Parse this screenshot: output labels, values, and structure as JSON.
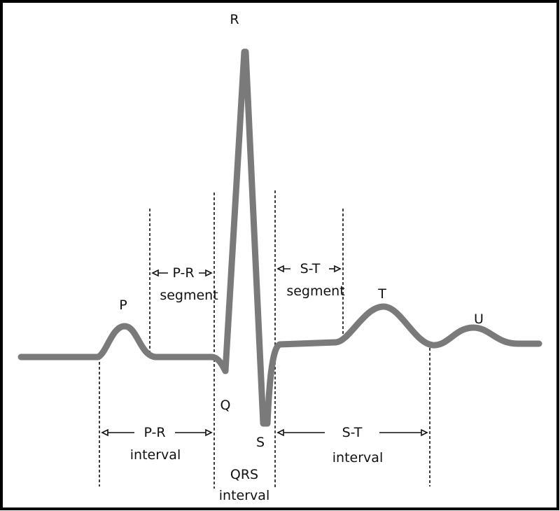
{
  "colors": {
    "trace": "#7a7a7a",
    "border": "#000000",
    "ink": "#111111"
  },
  "waves": {
    "p": "P",
    "q": "Q",
    "r": "R",
    "s": "S",
    "t": "T",
    "u": "U"
  },
  "spans": {
    "pr_segment": {
      "line1": "P-R",
      "line2": "segment"
    },
    "st_segment": {
      "line1": "S-T",
      "line2": "segment"
    },
    "pr_interval": {
      "line1": "P-R",
      "line2": "interval"
    },
    "st_interval": {
      "line1": "S-T",
      "line2": "interval"
    },
    "qrs_interval": {
      "line1": "QRS",
      "line2": "interval"
    }
  }
}
